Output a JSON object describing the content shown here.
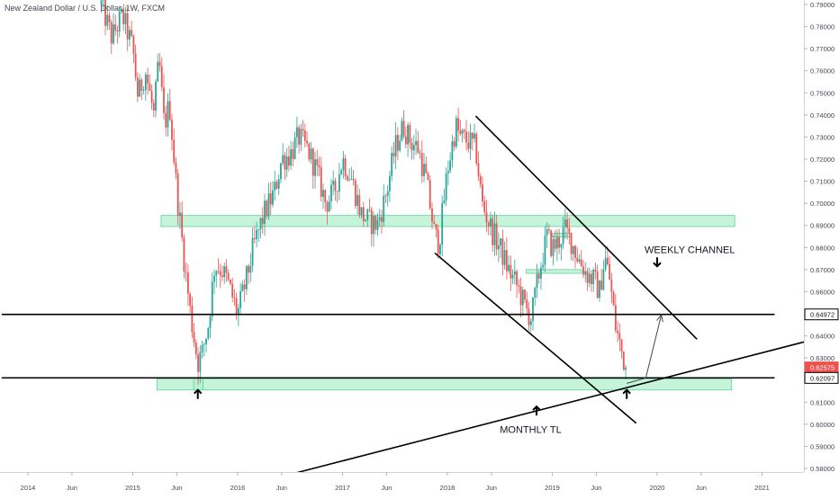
{
  "chart_data": {
    "type": "candlestick",
    "title": "New Zealand Dollar / U.S. Dollar, 1W, FXCM",
    "ylim": [
      0.575,
      0.792
    ],
    "grid": false,
    "colors": {
      "up": "#26a69a",
      "down": "#ef5350",
      "zone_fill": "#b2f0cd",
      "zone_stroke": "#5fd39a",
      "line": "#000000",
      "price_tag": "#000000",
      "current_tag": "#ef5350"
    },
    "y_ticks": [
      "0.79000",
      "0.78000",
      "0.77000",
      "0.76000",
      "0.75000",
      "0.74000",
      "0.73000",
      "0.72000",
      "0.71000",
      "0.70000",
      "0.69000",
      "0.68000",
      "0.67000",
      "0.66000",
      "0.65000",
      "0.64000",
      "0.63000",
      "0.62000",
      "0.61000",
      "0.60000",
      "0.59000",
      "0.58000"
    ],
    "x_ticks": [
      "2014",
      "Jun",
      "2015",
      "Jun",
      "2016",
      "Jun",
      "2017",
      "Jun",
      "2018",
      "Jun",
      "2019",
      "Jun",
      "2020",
      "Jun",
      "2021"
    ],
    "x_tick_dates": [
      2014.0,
      2014.42,
      2015.0,
      2015.42,
      2016.0,
      2016.42,
      2017.0,
      2017.42,
      2018.0,
      2018.42,
      2019.0,
      2019.42,
      2020.0,
      2020.42,
      2021.0
    ],
    "price_path": [
      [
        2014.7,
        0.79
      ],
      [
        2014.8,
        0.775
      ],
      [
        2014.9,
        0.785
      ],
      [
        2015.0,
        0.77
      ],
      [
        2015.05,
        0.748
      ],
      [
        2015.12,
        0.76
      ],
      [
        2015.2,
        0.74
      ],
      [
        2015.25,
        0.765
      ],
      [
        2015.3,
        0.735
      ],
      [
        2015.35,
        0.745
      ],
      [
        2015.42,
        0.705
      ],
      [
        2015.5,
        0.67
      ],
      [
        2015.55,
        0.65
      ],
      [
        2015.62,
        0.628
      ],
      [
        2015.66,
        0.632
      ],
      [
        2015.72,
        0.645
      ],
      [
        2015.78,
        0.672
      ],
      [
        2015.85,
        0.67
      ],
      [
        2015.9,
        0.665
      ],
      [
        2016.0,
        0.65
      ],
      [
        2016.08,
        0.665
      ],
      [
        2016.15,
        0.68
      ],
      [
        2016.25,
        0.695
      ],
      [
        2016.35,
        0.705
      ],
      [
        2016.42,
        0.72
      ],
      [
        2016.5,
        0.722
      ],
      [
        2016.58,
        0.73
      ],
      [
        2016.66,
        0.725
      ],
      [
        2016.75,
        0.715
      ],
      [
        2016.84,
        0.7
      ],
      [
        2016.92,
        0.705
      ],
      [
        2017.0,
        0.72
      ],
      [
        2017.08,
        0.712
      ],
      [
        2017.18,
        0.695
      ],
      [
        2017.25,
        0.692
      ],
      [
        2017.33,
        0.69
      ],
      [
        2017.42,
        0.705
      ],
      [
        2017.5,
        0.725
      ],
      [
        2017.58,
        0.735
      ],
      [
        2017.65,
        0.728
      ],
      [
        2017.72,
        0.725
      ],
      [
        2017.8,
        0.71
      ],
      [
        2017.88,
        0.685
      ],
      [
        2017.92,
        0.682
      ],
      [
        2018.0,
        0.715
      ],
      [
        2018.08,
        0.735
      ],
      [
        2018.12,
        0.73
      ],
      [
        2018.2,
        0.728
      ],
      [
        2018.27,
        0.725
      ],
      [
        2018.33,
        0.7
      ],
      [
        2018.42,
        0.688
      ],
      [
        2018.5,
        0.68
      ],
      [
        2018.58,
        0.67
      ],
      [
        2018.67,
        0.662
      ],
      [
        2018.75,
        0.652
      ],
      [
        2018.8,
        0.648
      ],
      [
        2018.88,
        0.67
      ],
      [
        2018.95,
        0.685
      ],
      [
        2019.0,
        0.68
      ],
      [
        2019.05,
        0.682
      ],
      [
        2019.12,
        0.688
      ],
      [
        2019.18,
        0.683
      ],
      [
        2019.25,
        0.675
      ],
      [
        2019.33,
        0.668
      ],
      [
        2019.4,
        0.665
      ],
      [
        2019.45,
        0.66
      ],
      [
        2019.5,
        0.676
      ],
      [
        2019.55,
        0.665
      ],
      [
        2019.6,
        0.645
      ],
      [
        2019.66,
        0.633
      ],
      [
        2019.7,
        0.6257
      ]
    ],
    "zones": [
      {
        "name": "resistance-zone",
        "x0": 2015.27,
        "x1": 2020.74,
        "y0": 0.6895,
        "y1": 0.6945
      },
      {
        "name": "support-zone",
        "x0": 2015.23,
        "x1": 2020.71,
        "y0": 0.6155,
        "y1": 0.6205
      },
      {
        "name": "mini-zone-1",
        "x0": 2018.75,
        "x1": 2019.28,
        "y0": 0.6683,
        "y1": 0.67
      },
      {
        "name": "mini-zone-2",
        "x0": 2019.0,
        "x1": 2019.18,
        "y0": 0.6848,
        "y1": 0.6865
      },
      {
        "name": "low-marker-box",
        "x0": 2015.58,
        "x1": 2015.67,
        "y0": 0.6155,
        "y1": 0.6205
      }
    ],
    "trendlines": [
      {
        "name": "channel-upper-line",
        "x0": 2018.27,
        "y0": 0.7395,
        "x1": 2020.38,
        "y1": 0.6385
      },
      {
        "name": "channel-lower-line",
        "x0": 2017.88,
        "y0": 0.6775,
        "x1": 2019.8,
        "y1": 0.6005
      },
      {
        "name": "monthly-tl-line",
        "x0": 2016.19,
        "y0": 0.5735,
        "x1": 2021.42,
        "y1": 0.6375
      },
      {
        "name": "horizontal-resistance-line",
        "x0": 2013.75,
        "y0": 0.6497,
        "x1": 2021.12,
        "y1": 0.6497
      },
      {
        "name": "horizontal-support-line",
        "x0": 2013.75,
        "y0": 0.621,
        "x1": 2021.12,
        "y1": 0.621
      }
    ],
    "projection_arrow": {
      "x0": 2019.71,
      "y0": 0.6185,
      "x1": 2020.04,
      "y1": 0.6495
    },
    "up_arrows": [
      {
        "name": "up-arrow-2015-low",
        "x": 2015.62,
        "y": 0.6135
      },
      {
        "name": "up-arrow-monthly-tl",
        "x": 2018.85,
        "y": 0.606
      },
      {
        "name": "up-arrow-2019-low",
        "x": 2019.71,
        "y": 0.6135
      }
    ],
    "down_arrows": [
      {
        "name": "down-arrow-weekly-channel",
        "x": 2020.0,
        "y": 0.6735
      }
    ],
    "annotations": [
      {
        "name": "weekly-channel-label",
        "text": "WEEKLY CHANNEL",
        "x": 2019.88,
        "y": 0.6775
      },
      {
        "name": "monthly-tl-label",
        "text": "MONTHLY TL",
        "x": 2018.5,
        "y": 0.596
      }
    ],
    "price_tags": [
      {
        "name": "price-tag-064972",
        "text": "0.64972",
        "y": 0.64972,
        "style": "line"
      },
      {
        "name": "price-tag-062575",
        "text": "0.62575",
        "y": 0.62575,
        "style": "current"
      },
      {
        "name": "price-tag-062097",
        "text": "0.62097",
        "y": 0.62097,
        "style": "line"
      }
    ]
  }
}
